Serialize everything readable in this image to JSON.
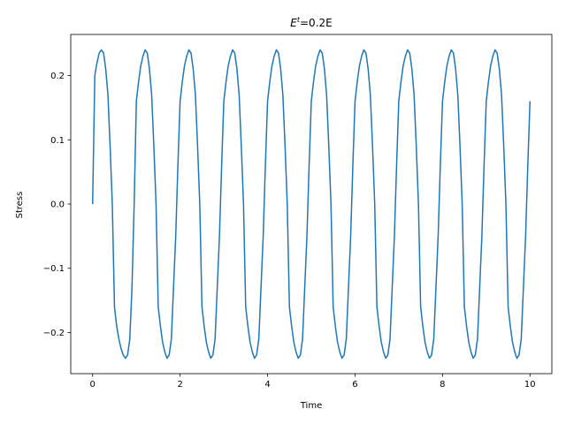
{
  "chart_data": {
    "type": "line",
    "title_base": "E",
    "title_sup": "t",
    "title_rest": "=0.2E",
    "xlabel": "Time",
    "ylabel": "Stress",
    "xlim": [
      -0.5,
      10.5
    ],
    "ylim": [
      -0.264,
      0.264
    ],
    "xticks": [
      0,
      2,
      4,
      6,
      8,
      10
    ],
    "xtick_labels": [
      "0",
      "2",
      "4",
      "6",
      "8",
      "10"
    ],
    "yticks": [
      -0.2,
      -0.1,
      0.0,
      0.1,
      0.2
    ],
    "ytick_labels": [
      "−0.2",
      "−0.1",
      "0.0",
      "0.1",
      "0.2"
    ],
    "grid": false,
    "series": [
      {
        "color": "#1f77b4",
        "x": [
          0,
          0.05,
          0.1,
          0.15,
          0.2,
          0.25,
          0.3,
          0.35,
          0.4,
          0.45,
          0.5,
          0.55,
          0.6,
          0.65,
          0.7,
          0.75,
          0.8,
          0.85,
          0.9,
          0.95,
          1.0,
          1.05,
          1.1,
          1.15,
          1.2,
          1.25,
          1.3,
          1.35,
          1.4,
          1.45,
          1.5,
          1.55,
          1.6,
          1.65,
          1.7,
          1.75,
          1.8,
          1.85,
          1.9,
          1.95,
          2.0,
          2.05,
          2.1,
          2.15,
          2.2,
          2.25,
          2.3,
          2.35,
          2.4,
          2.45,
          2.5,
          2.55,
          2.6,
          2.65,
          2.7,
          2.75,
          2.8,
          2.85,
          2.9,
          2.95,
          3.0,
          3.05,
          3.1,
          3.15,
          3.2,
          3.25,
          3.3,
          3.35,
          3.4,
          3.45,
          3.5,
          3.55,
          3.6,
          3.65,
          3.7,
          3.75,
          3.8,
          3.85,
          3.9,
          3.95,
          4.0,
          4.05,
          4.1,
          4.15,
          4.2,
          4.25,
          4.3,
          4.35,
          4.4,
          4.45,
          4.5,
          4.55,
          4.6,
          4.65,
          4.7,
          4.75,
          4.8,
          4.85,
          4.9,
          4.95,
          5.0,
          5.05,
          5.1,
          5.15,
          5.2,
          5.25,
          5.3,
          5.35,
          5.4,
          5.45,
          5.5,
          5.55,
          5.6,
          5.65,
          5.7,
          5.75,
          5.8,
          5.85,
          5.9,
          5.95,
          6.0,
          6.05,
          6.1,
          6.15,
          6.2,
          6.25,
          6.3,
          6.35,
          6.4,
          6.45,
          6.5,
          6.55,
          6.6,
          6.65,
          6.7,
          6.75,
          6.8,
          6.85,
          6.9,
          6.95,
          7.0,
          7.05,
          7.1,
          7.15,
          7.2,
          7.25,
          7.3,
          7.35,
          7.4,
          7.45,
          7.5,
          7.55,
          7.6,
          7.65,
          7.7,
          7.75,
          7.8,
          7.85,
          7.9,
          7.95,
          8.0,
          8.05,
          8.1,
          8.15,
          8.2,
          8.25,
          8.3,
          8.35,
          8.4,
          8.45,
          8.5,
          8.55,
          8.6,
          8.65,
          8.7,
          8.75,
          8.8,
          8.85,
          8.9,
          8.95,
          9.0,
          9.05,
          9.1,
          9.15,
          9.2,
          9.25,
          9.3,
          9.35,
          9.4,
          9.45,
          9.5,
          9.55,
          9.6,
          9.65,
          9.7,
          9.75,
          9.8,
          9.85,
          9.9,
          9.95,
          10.0
        ],
        "y": [
          0.0,
          0.2,
          0.22,
          0.235,
          0.24,
          0.235,
          0.21,
          0.17,
          0.09,
          0.0,
          -0.16,
          -0.19,
          -0.21,
          -0.225,
          -0.235,
          -0.24,
          -0.235,
          -0.21,
          -0.13,
          0.0,
          0.16,
          0.19,
          0.215,
          0.23,
          0.24,
          0.235,
          0.21,
          0.17,
          0.09,
          0.0,
          -0.16,
          -0.19,
          -0.215,
          -0.23,
          -0.24,
          -0.235,
          -0.21,
          -0.13,
          -0.05,
          0.06,
          0.16,
          0.19,
          0.215,
          0.23,
          0.24,
          0.235,
          0.21,
          0.17,
          0.09,
          0.0,
          -0.16,
          -0.19,
          -0.215,
          -0.23,
          -0.24,
          -0.235,
          -0.21,
          -0.13,
          -0.05,
          0.06,
          0.16,
          0.19,
          0.215,
          0.23,
          0.24,
          0.235,
          0.21,
          0.17,
          0.09,
          0.0,
          -0.16,
          -0.19,
          -0.215,
          -0.23,
          -0.24,
          -0.235,
          -0.21,
          -0.13,
          -0.05,
          0.06,
          0.16,
          0.19,
          0.215,
          0.23,
          0.24,
          0.235,
          0.21,
          0.17,
          0.09,
          0.0,
          -0.16,
          -0.19,
          -0.215,
          -0.23,
          -0.24,
          -0.235,
          -0.21,
          -0.13,
          -0.05,
          0.06,
          0.16,
          0.19,
          0.215,
          0.23,
          0.24,
          0.235,
          0.21,
          0.17,
          0.09,
          0.0,
          -0.16,
          -0.19,
          -0.215,
          -0.23,
          -0.24,
          -0.235,
          -0.21,
          -0.13,
          -0.05,
          0.06,
          0.16,
          0.19,
          0.215,
          0.23,
          0.24,
          0.235,
          0.21,
          0.17,
          0.09,
          0.0,
          -0.16,
          -0.19,
          -0.215,
          -0.23,
          -0.24,
          -0.235,
          -0.21,
          -0.13,
          -0.05,
          0.06,
          0.16,
          0.19,
          0.215,
          0.23,
          0.24,
          0.235,
          0.21,
          0.17,
          0.09,
          0.0,
          -0.16,
          -0.19,
          -0.215,
          -0.23,
          -0.24,
          -0.235,
          -0.21,
          -0.13,
          -0.05,
          0.06,
          0.16,
          0.19,
          0.215,
          0.23,
          0.24,
          0.235,
          0.21,
          0.17,
          0.09,
          0.0,
          -0.16,
          -0.19,
          -0.215,
          -0.23,
          -0.24,
          -0.235,
          -0.21,
          -0.13,
          -0.05,
          0.06,
          0.16,
          0.19,
          0.215,
          0.23,
          0.24,
          0.235,
          0.21,
          0.17,
          0.09,
          0.0,
          -0.16,
          -0.19,
          -0.215,
          -0.23,
          -0.24,
          -0.235,
          -0.21,
          -0.13,
          -0.05,
          0.06,
          0.16
        ]
      }
    ]
  }
}
